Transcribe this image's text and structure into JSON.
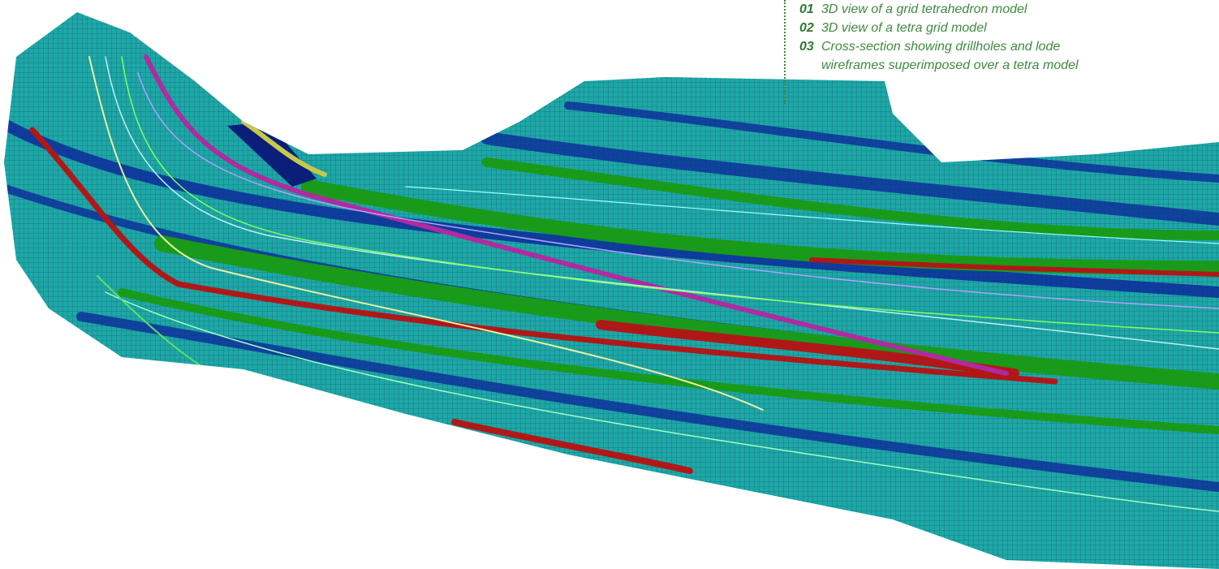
{
  "captions": {
    "items": [
      {
        "number": "01",
        "text": "3D view of a grid tetrahedron model"
      },
      {
        "number": "02",
        "text": "3D view of a tetra grid model"
      },
      {
        "number": "03",
        "text": "Cross-section showing drillholes and lode wireframes superimposed over a tetra model"
      }
    ]
  }
}
